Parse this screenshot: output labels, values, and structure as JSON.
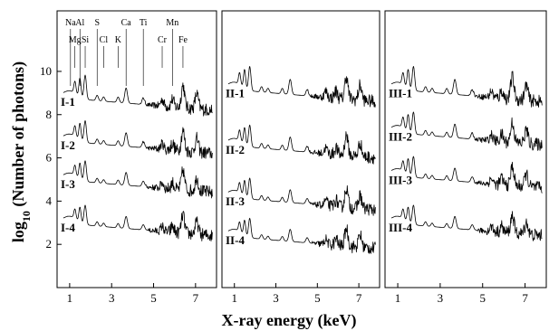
{
  "chart_data": {
    "type": "line",
    "xlabel": "X-ray energy (keV)",
    "ylabel_prefix": "log",
    "ylabel_sub": "10",
    "ylabel_suffix": " (Number of photons)",
    "xlim": [
      0.4,
      8.0
    ],
    "ylim": [
      0,
      12.8
    ],
    "xticks": [
      1,
      3,
      5,
      7
    ],
    "yticks": [
      2,
      4,
      6,
      8,
      10
    ],
    "element_labels": [
      {
        "name": "Na",
        "energy": 1.04,
        "row": 1
      },
      {
        "name": "Al",
        "energy": 1.49,
        "row": 1
      },
      {
        "name": "S",
        "energy": 2.31,
        "row": 1
      },
      {
        "name": "Ca",
        "energy": 3.69,
        "row": 1
      },
      {
        "name": "Ti",
        "energy": 4.51,
        "row": 1
      },
      {
        "name": "Mn",
        "energy": 5.9,
        "row": 1
      },
      {
        "name": "Mg",
        "energy": 1.25,
        "row": 2
      },
      {
        "name": "Si",
        "energy": 1.74,
        "row": 2
      },
      {
        "name": "Cl",
        "energy": 2.62,
        "row": 2
      },
      {
        "name": "K",
        "energy": 3.31,
        "row": 2
      },
      {
        "name": "Cr",
        "energy": 5.41,
        "row": 2
      },
      {
        "name": "Fe",
        "energy": 6.4,
        "row": 2
      }
    ],
    "panels": [
      {
        "series": [
          {
            "name": "I-1",
            "offset": 8.6,
            "peak_scale": 1.0
          },
          {
            "name": "I-2",
            "offset": 6.6,
            "peak_scale": 0.9
          },
          {
            "name": "I-3",
            "offset": 4.8,
            "peak_scale": 0.85
          },
          {
            "name": "I-4",
            "offset": 2.8,
            "peak_scale": 0.8
          }
        ]
      },
      {
        "series": [
          {
            "name": "II-1",
            "offset": 9.0,
            "peak_scale": 1.0
          },
          {
            "name": "II-2",
            "offset": 6.4,
            "peak_scale": 0.9
          },
          {
            "name": "II-3",
            "offset": 4.0,
            "peak_scale": 0.85
          },
          {
            "name": "II-4",
            "offset": 2.2,
            "peak_scale": 0.8
          }
        ]
      },
      {
        "series": [
          {
            "name": "III-1",
            "offset": 9.0,
            "peak_scale": 1.0
          },
          {
            "name": "III-2",
            "offset": 7.0,
            "peak_scale": 0.9
          },
          {
            "name": "III-3",
            "offset": 5.0,
            "peak_scale": 0.85
          },
          {
            "name": "III-4",
            "offset": 2.8,
            "peak_scale": 0.8
          }
        ]
      }
    ]
  }
}
